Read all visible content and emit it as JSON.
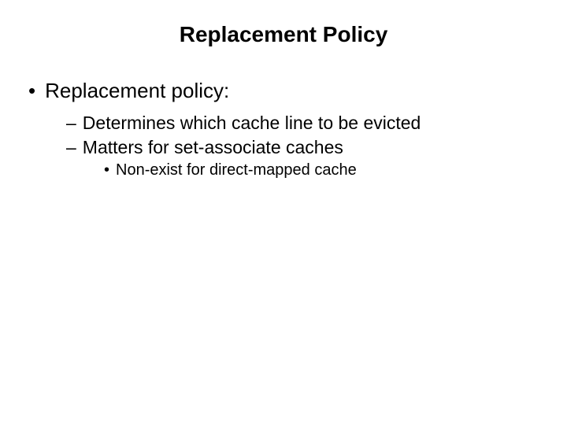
{
  "slide": {
    "title": "Replacement Policy",
    "background_color": "#ffffff",
    "text_color": "#000000",
    "font_family": "Verdana",
    "title_fontsize": 28,
    "l1_fontsize": 26,
    "l2_fontsize": 23,
    "l3_fontsize": 20,
    "bullets": {
      "l1": {
        "marker": "•",
        "text": "Replacement policy:"
      },
      "l2_items": [
        {
          "marker": "–",
          "text": "Determines which cache line to be evicted"
        },
        {
          "marker": "–",
          "text": "Matters for set-associate caches"
        }
      ],
      "l3": {
        "marker": "•",
        "text": "Non-exist for direct-mapped cache"
      }
    }
  }
}
